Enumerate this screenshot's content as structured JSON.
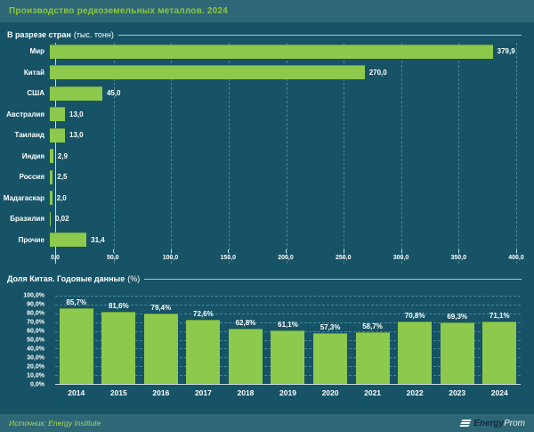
{
  "page": {
    "title": "Производство редкоземельных металлов. 2024",
    "source_label": "Источник: Energy Institute",
    "logo": {
      "bold": "Energy",
      "light": "Prom"
    }
  },
  "colors": {
    "background": "#165366",
    "panel": "#2E6876",
    "bar_green": "#8DC94C",
    "title_green": "#8DC63F",
    "text": "#FFFFFF",
    "gridline": "#7DC8DC"
  },
  "chart_data": [
    {
      "type": "bar",
      "orientation": "horizontal",
      "title": "В разрезе стран",
      "unit_label": "(тыс. тонн)",
      "categories": [
        "Мир",
        "Китай",
        "США",
        "Австралия",
        "Таиланд",
        "Индия",
        "Россия",
        "Мадагаскар",
        "Бразилия",
        "Прочие"
      ],
      "values": [
        379.9,
        270.0,
        45.0,
        13.0,
        13.0,
        2.9,
        2.5,
        2.0,
        0.02,
        31.4
      ],
      "value_labels": [
        "379,9",
        "270,0",
        "45,0",
        "13,0",
        "13,0",
        "2,9",
        "2,5",
        "2,0",
        "0,02",
        "31,4"
      ],
      "xlim": [
        0,
        400
      ],
      "x_ticks": [
        "0,0",
        "50,0",
        "100,0",
        "150,0",
        "200,0",
        "250,0",
        "300,0",
        "350,0",
        "400,0"
      ],
      "grid": "vertical-dashed",
      "legend": "none"
    },
    {
      "type": "bar",
      "orientation": "vertical",
      "title": "Доля Китая. Годовые данные",
      "unit_label": "(%)",
      "categories": [
        "2014",
        "2015",
        "2016",
        "2017",
        "2018",
        "2019",
        "2020",
        "2021",
        "2022",
        "2023",
        "2024"
      ],
      "values": [
        85.7,
        81.6,
        79.4,
        72.6,
        62.8,
        61.1,
        57.3,
        58.7,
        70.8,
        69.3,
        71.1
      ],
      "value_labels": [
        "85,7%",
        "81,6%",
        "79,4%",
        "72,6%",
        "62,8%",
        "61,1%",
        "57,3%",
        "58,7%",
        "70,8%",
        "69,3%",
        "71,1%"
      ],
      "ylim": [
        0,
        100
      ],
      "y_ticks": [
        "100,0%",
        "90,0%",
        "80,0%",
        "70,0%",
        "60,0%",
        "50,0%",
        "40,0%",
        "30,0%",
        "20,0%",
        "10,0%",
        "0,0%"
      ],
      "grid": "horizontal-dashed",
      "legend": "none"
    }
  ]
}
